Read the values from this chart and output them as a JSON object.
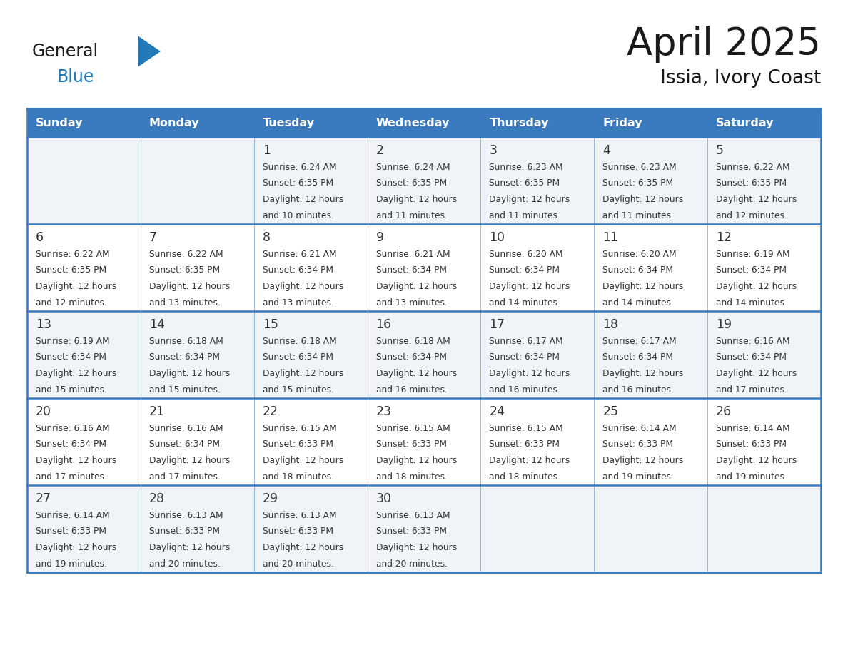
{
  "title": "April 2025",
  "subtitle": "Issia, Ivory Coast",
  "header_bg": "#3a7abf",
  "header_text": "#ffffff",
  "row_bg_odd": "#f0f4f8",
  "row_bg_even": "#ffffff",
  "border_color": "#3a7abf",
  "text_color": "#333333",
  "days_of_week": [
    "Sunday",
    "Monday",
    "Tuesday",
    "Wednesday",
    "Thursday",
    "Friday",
    "Saturday"
  ],
  "calendar_data": [
    [
      {
        "day": "",
        "sunrise": "",
        "sunset": "",
        "daylight": ""
      },
      {
        "day": "",
        "sunrise": "",
        "sunset": "",
        "daylight": ""
      },
      {
        "day": "1",
        "sunrise": "6:24 AM",
        "sunset": "6:35 PM",
        "daylight": "12 hours and 10 minutes."
      },
      {
        "day": "2",
        "sunrise": "6:24 AM",
        "sunset": "6:35 PM",
        "daylight": "12 hours and 11 minutes."
      },
      {
        "day": "3",
        "sunrise": "6:23 AM",
        "sunset": "6:35 PM",
        "daylight": "12 hours and 11 minutes."
      },
      {
        "day": "4",
        "sunrise": "6:23 AM",
        "sunset": "6:35 PM",
        "daylight": "12 hours and 11 minutes."
      },
      {
        "day": "5",
        "sunrise": "6:22 AM",
        "sunset": "6:35 PM",
        "daylight": "12 hours and 12 minutes."
      }
    ],
    [
      {
        "day": "6",
        "sunrise": "6:22 AM",
        "sunset": "6:35 PM",
        "daylight": "12 hours and 12 minutes."
      },
      {
        "day": "7",
        "sunrise": "6:22 AM",
        "sunset": "6:35 PM",
        "daylight": "12 hours and 13 minutes."
      },
      {
        "day": "8",
        "sunrise": "6:21 AM",
        "sunset": "6:34 PM",
        "daylight": "12 hours and 13 minutes."
      },
      {
        "day": "9",
        "sunrise": "6:21 AM",
        "sunset": "6:34 PM",
        "daylight": "12 hours and 13 minutes."
      },
      {
        "day": "10",
        "sunrise": "6:20 AM",
        "sunset": "6:34 PM",
        "daylight": "12 hours and 14 minutes."
      },
      {
        "day": "11",
        "sunrise": "6:20 AM",
        "sunset": "6:34 PM",
        "daylight": "12 hours and 14 minutes."
      },
      {
        "day": "12",
        "sunrise": "6:19 AM",
        "sunset": "6:34 PM",
        "daylight": "12 hours and 14 minutes."
      }
    ],
    [
      {
        "day": "13",
        "sunrise": "6:19 AM",
        "sunset": "6:34 PM",
        "daylight": "12 hours and 15 minutes."
      },
      {
        "day": "14",
        "sunrise": "6:18 AM",
        "sunset": "6:34 PM",
        "daylight": "12 hours and 15 minutes."
      },
      {
        "day": "15",
        "sunrise": "6:18 AM",
        "sunset": "6:34 PM",
        "daylight": "12 hours and 15 minutes."
      },
      {
        "day": "16",
        "sunrise": "6:18 AM",
        "sunset": "6:34 PM",
        "daylight": "12 hours and 16 minutes."
      },
      {
        "day": "17",
        "sunrise": "6:17 AM",
        "sunset": "6:34 PM",
        "daylight": "12 hours and 16 minutes."
      },
      {
        "day": "18",
        "sunrise": "6:17 AM",
        "sunset": "6:34 PM",
        "daylight": "12 hours and 16 minutes."
      },
      {
        "day": "19",
        "sunrise": "6:16 AM",
        "sunset": "6:34 PM",
        "daylight": "12 hours and 17 minutes."
      }
    ],
    [
      {
        "day": "20",
        "sunrise": "6:16 AM",
        "sunset": "6:34 PM",
        "daylight": "12 hours and 17 minutes."
      },
      {
        "day": "21",
        "sunrise": "6:16 AM",
        "sunset": "6:34 PM",
        "daylight": "12 hours and 17 minutes."
      },
      {
        "day": "22",
        "sunrise": "6:15 AM",
        "sunset": "6:33 PM",
        "daylight": "12 hours and 18 minutes."
      },
      {
        "day": "23",
        "sunrise": "6:15 AM",
        "sunset": "6:33 PM",
        "daylight": "12 hours and 18 minutes."
      },
      {
        "day": "24",
        "sunrise": "6:15 AM",
        "sunset": "6:33 PM",
        "daylight": "12 hours and 18 minutes."
      },
      {
        "day": "25",
        "sunrise": "6:14 AM",
        "sunset": "6:33 PM",
        "daylight": "12 hours and 19 minutes."
      },
      {
        "day": "26",
        "sunrise": "6:14 AM",
        "sunset": "6:33 PM",
        "daylight": "12 hours and 19 minutes."
      }
    ],
    [
      {
        "day": "27",
        "sunrise": "6:14 AM",
        "sunset": "6:33 PM",
        "daylight": "12 hours and 19 minutes."
      },
      {
        "day": "28",
        "sunrise": "6:13 AM",
        "sunset": "6:33 PM",
        "daylight": "12 hours and 20 minutes."
      },
      {
        "day": "29",
        "sunrise": "6:13 AM",
        "sunset": "6:33 PM",
        "daylight": "12 hours and 20 minutes."
      },
      {
        "day": "30",
        "sunrise": "6:13 AM",
        "sunset": "6:33 PM",
        "daylight": "12 hours and 20 minutes."
      },
      {
        "day": "",
        "sunrise": "",
        "sunset": "",
        "daylight": ""
      },
      {
        "day": "",
        "sunrise": "",
        "sunset": "",
        "daylight": ""
      },
      {
        "day": "",
        "sunrise": "",
        "sunset": "",
        "daylight": ""
      }
    ]
  ],
  "logo_general_color": "#1a1a1a",
  "logo_blue_color": "#2179b5",
  "logo_triangle_color": "#2179b5",
  "fig_width": 11.88,
  "fig_height": 9.18,
  "dpi": 100
}
